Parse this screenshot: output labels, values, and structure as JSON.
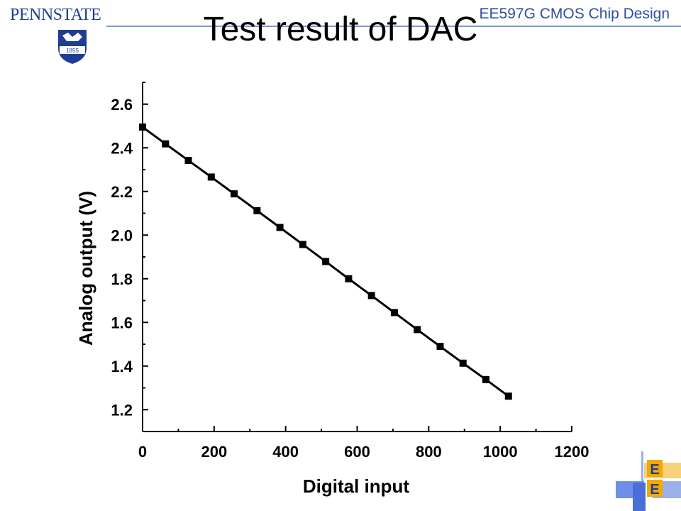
{
  "header": {
    "university_logo_text": "PENNSTATE",
    "seal_year": "1855",
    "course_title": "EE597G CMOS Chip Design"
  },
  "slide": {
    "title": "Test result of DAC"
  },
  "footer_logo": {
    "letters": [
      "E",
      "E"
    ]
  },
  "colors": {
    "brand_blue": "#1e3f8f",
    "header_line": "#7f98c8",
    "series": "#000000",
    "ee_orange": "#f2a900",
    "ee_blue": "#4a6fd8"
  },
  "chart_data": {
    "type": "line",
    "title": "",
    "xlabel": "Digital input",
    "ylabel": "Analog output (V)",
    "xlim": [
      0,
      1200
    ],
    "ylim": [
      1.1,
      2.7
    ],
    "x_ticks": [
      "0",
      "200",
      "400",
      "600",
      "800",
      "1000",
      "1200"
    ],
    "y_ticks": [
      "1.2",
      "1.4",
      "1.6",
      "1.8",
      "2.0",
      "2.2",
      "2.4",
      "2.6"
    ],
    "grid": false,
    "legend": "none",
    "marker": "square",
    "series": [
      {
        "x": [
          0,
          64,
          128,
          192,
          256,
          320,
          384,
          448,
          512,
          576,
          640,
          704,
          768,
          832,
          896,
          960,
          1023
        ],
        "y": [
          2.495,
          2.418,
          2.342,
          2.266,
          2.189,
          2.112,
          2.035,
          1.957,
          1.879,
          1.8,
          1.723,
          1.645,
          1.567,
          1.49,
          1.413,
          1.338,
          1.262
        ]
      }
    ]
  }
}
